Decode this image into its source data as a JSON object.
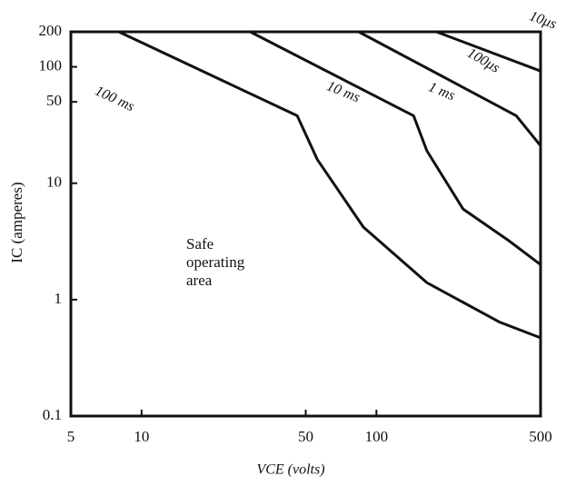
{
  "chart_data": {
    "type": "line",
    "x_label": "VCE (volts)",
    "y_label": "IC (amperes)",
    "annotation": [
      "Safe",
      "operating",
      "area"
    ],
    "log_x": true,
    "log_y": true,
    "xlim": [
      5,
      500
    ],
    "ylim": [
      0.1,
      200
    ],
    "xticks": [
      5,
      10,
      50,
      100,
      500
    ],
    "yticks": [
      0.1,
      1,
      10,
      50,
      100,
      200
    ],
    "color": "#111111",
    "series": [
      {
        "name": "100 ms",
        "x": [
          5,
          8,
          46,
          56,
          88,
          164,
          335,
          500
        ],
        "values": [
          200,
          200,
          38,
          16,
          4.2,
          1.4,
          0.64,
          0.47
        ]
      },
      {
        "name": "10 ms",
        "x": [
          29,
          144,
          164,
          234,
          367,
          500
        ],
        "values": [
          200,
          38,
          19,
          6,
          3.2,
          2
        ]
      },
      {
        "name": "1 ms",
        "x": [
          84,
          394,
          500
        ],
        "values": [
          200,
          38,
          21
        ]
      },
      {
        "name": "100μs",
        "x": [
          180,
          500
        ],
        "values": [
          200,
          92
        ]
      },
      {
        "name": "10μs",
        "x": [
          500,
          500
        ],
        "values": [
          200,
          0.1
        ]
      }
    ]
  }
}
